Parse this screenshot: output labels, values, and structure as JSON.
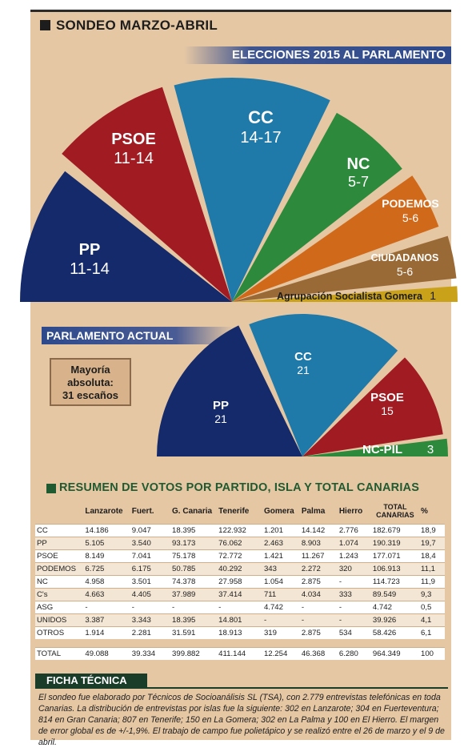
{
  "colors": {
    "pp": "#152a6b",
    "psoe": "#a01b22",
    "cc": "#1f7aa9",
    "nc": "#2d8a3c",
    "podemos": "#d06a1a",
    "ciudadanos": "#9a6a36",
    "asg": "#c9a21a",
    "ncpil": "#2d8a3c",
    "header_green": "#1f5a30"
  },
  "header": {
    "title": "SONDEO MARZO-ABRIL"
  },
  "elecciones": {
    "title": "ELECCIONES 2015 AL PARLAMENTO"
  },
  "parlamento": {
    "title": "PARLAMENTO ACTUAL",
    "mayoria_l1": "Mayoría",
    "mayoria_l2": "absoluta:",
    "mayoria_l3": "31 escaños"
  },
  "chart_data": [
    {
      "type": "pie",
      "title": "ELECCIONES 2015 AL PARLAMENTO",
      "series": [
        {
          "name": "PP",
          "value": "11-14"
        },
        {
          "name": "PSOE",
          "value": "11-14"
        },
        {
          "name": "CC",
          "value": "14-17"
        },
        {
          "name": "NC",
          "value": "5-7"
        },
        {
          "name": "PODEMOS",
          "value": "5-6"
        },
        {
          "name": "CIUDADANOS",
          "value": "5-6"
        },
        {
          "name": "Agrupación Socialista Gomera",
          "value": "1"
        }
      ]
    },
    {
      "type": "pie",
      "title": "PARLAMENTO ACTUAL",
      "series": [
        {
          "name": "PP",
          "value": "21"
        },
        {
          "name": "CC",
          "value": "21"
        },
        {
          "name": "PSOE",
          "value": "15"
        },
        {
          "name": "NC-PIL",
          "value": "3"
        }
      ]
    },
    {
      "type": "table",
      "title": "RESUMEN DE VOTOS POR PARTIDO, ISLA Y TOTAL CANARIAS",
      "columns": [
        "",
        "Lanzarote",
        "Fuert.",
        "G. Canaria",
        "Tenerife",
        "Gomera",
        "Palma",
        "Hierro",
        "TOTAL CANARIAS",
        "%"
      ],
      "rows": [
        [
          "CC",
          "14.186",
          "9.047",
          "18.395",
          "122.932",
          "1.201",
          "14.142",
          "2.776",
          "182.679",
          "18,9"
        ],
        [
          "PP",
          "5.105",
          "3.540",
          "93.173",
          "76.062",
          "2.463",
          "8.903",
          "1.074",
          "190.319",
          "19,7"
        ],
        [
          "PSOE",
          "8.149",
          "7.041",
          "75.178",
          "72.772",
          "1.421",
          "11.267",
          "1.243",
          "177.071",
          "18,4"
        ],
        [
          "PODEMOS",
          "6.725",
          "6.175",
          "50.785",
          "40.292",
          "343",
          "2.272",
          "320",
          "106.913",
          "11,1"
        ],
        [
          "NC",
          "4.958",
          "3.501",
          "74.378",
          "27.958",
          "1.054",
          "2.875",
          "-",
          "114.723",
          "11,9"
        ],
        [
          "C's",
          "4.663",
          "4.405",
          "37.989",
          "37.414",
          "711",
          "4.034",
          "333",
          "89.549",
          "9,3"
        ],
        [
          "ASG",
          "-",
          "-",
          "-",
          "-",
          "4.742",
          "-",
          "-",
          "4.742",
          "0,5"
        ],
        [
          "UNIDOS",
          "3.387",
          "3.343",
          "18.395",
          "14.801",
          "-",
          "-",
          "-",
          "39.926",
          "4,1"
        ],
        [
          "OTROS",
          "1.914",
          "2.281",
          "31.591",
          "18.913",
          "319",
          "2.875",
          "534",
          "58.426",
          "6,1"
        ]
      ],
      "total": [
        "TOTAL",
        "49.088",
        "39.334",
        "399.882",
        "411.144",
        "12.254",
        "46.368",
        "6.280",
        "964.349",
        "100"
      ]
    }
  ],
  "resumen": {
    "title": "RESUMEN DE VOTOS POR PARTIDO, ISLA Y TOTAL CANARIAS"
  },
  "ficha": {
    "title": "FICHA TÉCNICA",
    "text": "El sondeo fue elaborado por Técnicos de Socioanálisis SL (TSA), con 2.779 entrevistas telefónicas en toda Canarias. La distribución de entrevistas por islas fue la siguiente: 302 en Lanzarote; 304 en Fuerteventura; 814 en Gran Canaria; 807 en Tenerife; 150 en La Gomera; 302 en La Palma y 100 en El Hierro. El margen de error global es de +/-1,9%. El trabajo de campo fue polietápico y se realizó entre el 26 de marzo y el 9 de abril."
  }
}
